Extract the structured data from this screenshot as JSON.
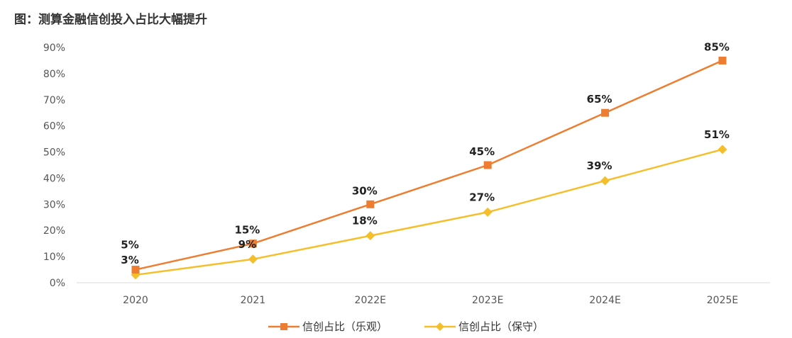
{
  "figure_title": "图：测算金融信创投入占比大幅提升",
  "chart_data": {
    "type": "line",
    "title": "",
    "xlabel": "",
    "ylabel": "",
    "categories": [
      "2020",
      "2021",
      "2022E",
      "2023E",
      "2024E",
      "2025E"
    ],
    "ylim": [
      0,
      90
    ],
    "yticks": [
      "0%",
      "10%",
      "20%",
      "30%",
      "40%",
      "50%",
      "60%",
      "70%",
      "80%",
      "90%"
    ],
    "grid": false,
    "legend_position": "bottom",
    "series": [
      {
        "name": "信创占比（乐观）",
        "values": [
          5,
          15,
          30,
          45,
          65,
          85
        ],
        "labels": [
          "5%",
          "15%",
          "30%",
          "45%",
          "65%",
          "85%"
        ],
        "color": "#ED7D31",
        "marker": "square"
      },
      {
        "name": "信创占比（保守）",
        "values": [
          3,
          9,
          18,
          27,
          39,
          51
        ],
        "labels": [
          "3%",
          "9%",
          "18%",
          "27%",
          "39%",
          "51%"
        ],
        "color": "#F5BE2B",
        "marker": "diamond"
      }
    ]
  }
}
